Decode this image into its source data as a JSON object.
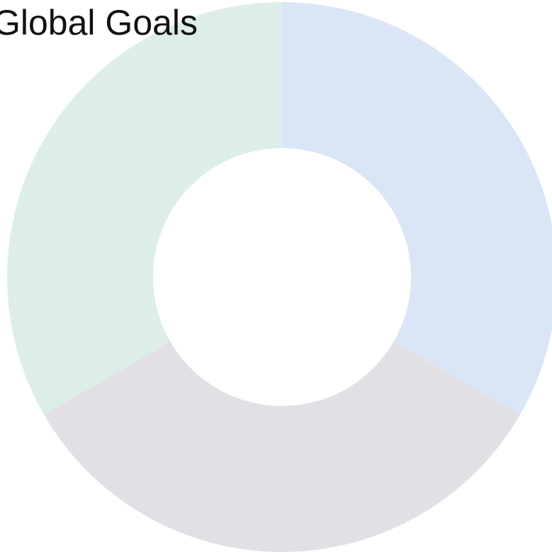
{
  "chart_data": {
    "type": "pie",
    "title": "Global Goals",
    "hole": true,
    "legend": "none",
    "start": "top",
    "direction": "clockwise",
    "slices": [
      {
        "value": 1,
        "color": "#dae6f6"
      },
      {
        "value": 1,
        "color": "#e2e0e5"
      },
      {
        "value": 1,
        "color": "#ddeee8"
      }
    ]
  }
}
